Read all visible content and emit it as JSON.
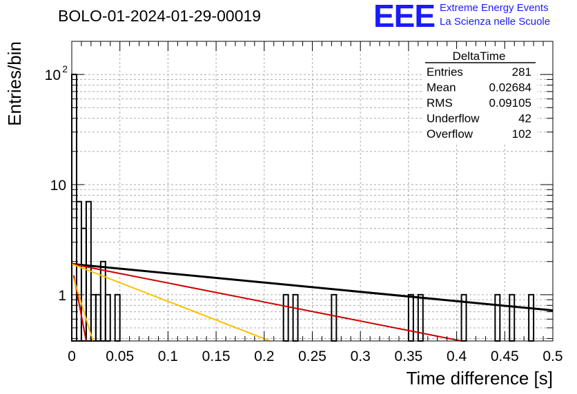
{
  "header": {
    "title": "BOLO-01-2024-01-29-00019",
    "logo_text": "EEE",
    "logo_line1": "Extreme Energy Events",
    "logo_line2": "La Scienza nelle Scuole"
  },
  "stats": {
    "name": "DeltaTime",
    "rows": [
      {
        "label": "Entries",
        "value": "281"
      },
      {
        "label": "Mean",
        "value": "0.02684"
      },
      {
        "label": "RMS",
        "value": "0.09105"
      },
      {
        "label": "Underflow",
        "value": "42"
      },
      {
        "label": "Overflow",
        "value": "102"
      }
    ]
  },
  "chart_data": {
    "type": "histogram",
    "xlabel": "Time difference [s]",
    "ylabel": "Entries/bin",
    "xlim": [
      0,
      0.5
    ],
    "ylim": [
      0.38,
      200
    ],
    "log_y": true,
    "grid": true,
    "x_ticks": [
      0,
      0.05,
      0.1,
      0.15,
      0.2,
      0.25,
      0.3,
      0.35,
      0.4,
      0.45,
      0.5
    ],
    "x_tick_labels": [
      "0",
      "0.05",
      "0.1",
      "0.15",
      "0.2",
      "0.25",
      "0.3",
      "0.35",
      "0.4",
      "0.45",
      "0.5"
    ],
    "y_tick_labels": [
      {
        "value": 1,
        "base": "1",
        "exp": ""
      },
      {
        "value": 10,
        "base": "10",
        "exp": ""
      },
      {
        "value": 100,
        "base": "10",
        "exp": "2"
      }
    ],
    "bin_width": 0.005,
    "bins": [
      {
        "x": 0.0,
        "y": 100
      },
      {
        "x": 0.005,
        "y": 7
      },
      {
        "x": 0.01,
        "y": 4
      },
      {
        "x": 0.015,
        "y": 7
      },
      {
        "x": 0.02,
        "y": 1
      },
      {
        "x": 0.025,
        "y": 1
      },
      {
        "x": 0.03,
        "y": 2
      },
      {
        "x": 0.035,
        "y": 1
      },
      {
        "x": 0.045,
        "y": 1
      },
      {
        "x": 0.22,
        "y": 1
      },
      {
        "x": 0.23,
        "y": 1
      },
      {
        "x": 0.27,
        "y": 1
      },
      {
        "x": 0.35,
        "y": 1
      },
      {
        "x": 0.36,
        "y": 1
      },
      {
        "x": 0.405,
        "y": 1
      },
      {
        "x": 0.44,
        "y": 1
      },
      {
        "x": 0.455,
        "y": 1
      },
      {
        "x": 0.475,
        "y": 1
      }
    ],
    "fits": [
      {
        "color": "#000000",
        "x": [
          0.0,
          0.5
        ],
        "y": [
          1.9,
          0.72
        ]
      },
      {
        "color": "#cc0000",
        "x": [
          0.0,
          0.405
        ],
        "y": [
          1.9,
          0.38
        ]
      },
      {
        "color": "#ffbf00",
        "x": [
          0.0,
          0.206
        ],
        "y": [
          1.9,
          0.38
        ]
      },
      {
        "color": "#cc0000",
        "x": [
          0.002,
          0.015
        ],
        "y": [
          1.5,
          0.38
        ]
      },
      {
        "color": "#ffbf00",
        "x": [
          0.002,
          0.022
        ],
        "y": [
          1.4,
          0.38
        ]
      }
    ]
  }
}
